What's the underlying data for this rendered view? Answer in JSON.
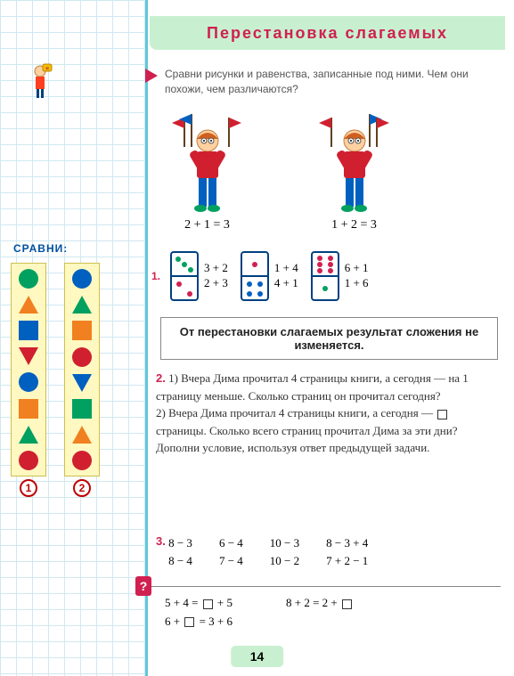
{
  "title": "Перестановка слагаемых",
  "instruction": "Сравни рисунки и равенства, записанные под ними. Чем они похожи, чем различаются?",
  "boys": {
    "left_eq": "2 + 1 = 3",
    "right_eq": "1 + 2 = 3"
  },
  "task1": {
    "number": "1.",
    "groups": [
      {
        "domino": {
          "top_dots": 3,
          "top_color": "#00a060",
          "bottom_dots": 2,
          "bottom_color": "#d02050"
        },
        "eqs": [
          "3 + 2",
          "2 + 3"
        ]
      },
      {
        "domino": {
          "top_dots": 1,
          "top_color": "#d02050",
          "bottom_dots": 4,
          "bottom_color": "#0060c0"
        },
        "eqs": [
          "1 + 4",
          "4 + 1"
        ]
      },
      {
        "domino": {
          "top_dots": 6,
          "top_color": "#d02050",
          "bottom_dots": 1,
          "bottom_color": "#00a060"
        },
        "eqs": [
          "6 + 1",
          "1 + 6"
        ]
      }
    ]
  },
  "rule": "От перестановки слагаемых результат сложения не изменяется.",
  "task2": {
    "number": "2.",
    "line1": "1) Вчера Дима прочитал 4 страницы книги, а сегодня — на 1 страницу меньше. Сколько страниц он прочитал сегодня?",
    "line2a": "2) Вчера Дима прочитал 4 страницы книги, а сегодня — ",
    "line2b": " страницы. Сколько всего страниц прочитал Дима за эти дни? Дополни условие, используя ответ предыдущей задачи."
  },
  "task3": {
    "number": "3.",
    "cols": [
      [
        "8 − 3",
        "8 − 4"
      ],
      [
        "6 − 4",
        "7 − 4"
      ],
      [
        "10 − 3",
        "10 − 2"
      ],
      [
        "8 − 3 + 4",
        "7 + 2 − 1"
      ]
    ]
  },
  "question": {
    "mark": "?",
    "col1": [
      "5 + 4 = □ + 5",
      "6 + □ = 3 + 6"
    ],
    "col2": [
      "8 + 2 = 2 + □"
    ]
  },
  "page_number": "14",
  "sidebar": {
    "compare_label": "СРАВНИ:",
    "mascot_badge": "н",
    "strips": [
      {
        "label": "1",
        "shapes": [
          {
            "type": "circle",
            "color": "#00a060"
          },
          {
            "type": "tri-up",
            "color": "#f08020"
          },
          {
            "type": "square",
            "color": "#0060c0"
          },
          {
            "type": "tri-down",
            "color": "#d02030"
          },
          {
            "type": "circle",
            "color": "#0060c0"
          },
          {
            "type": "square",
            "color": "#f08020"
          },
          {
            "type": "tri-up",
            "color": "#00a060"
          },
          {
            "type": "circle",
            "color": "#d02030"
          }
        ]
      },
      {
        "label": "2",
        "shapes": [
          {
            "type": "circle",
            "color": "#0060c0"
          },
          {
            "type": "tri-up",
            "color": "#00a060"
          },
          {
            "type": "square",
            "color": "#f08020"
          },
          {
            "type": "circle",
            "color": "#d02030"
          },
          {
            "type": "tri-down",
            "color": "#0060c0"
          },
          {
            "type": "square",
            "color": "#00a060"
          },
          {
            "type": "tri-up",
            "color": "#f08020"
          },
          {
            "type": "circle",
            "color": "#d02030"
          }
        ]
      }
    ]
  },
  "colors": {
    "title_bg": "#c8f0d0",
    "title_text": "#d02050",
    "accent": "#d02050",
    "grid": "#d0e8f0",
    "border": "#5fc8d8"
  }
}
